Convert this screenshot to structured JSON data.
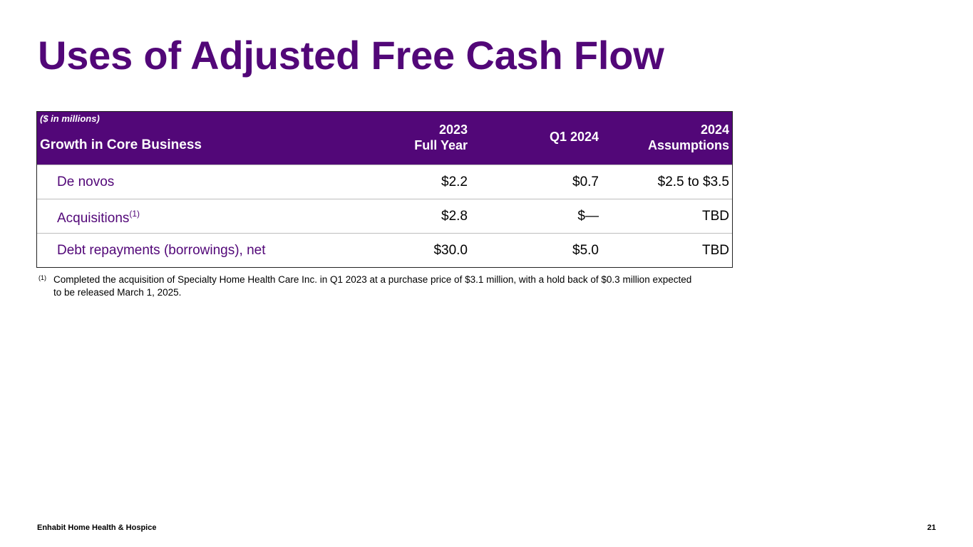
{
  "title": "Uses of Adjusted Free Cash Flow",
  "table": {
    "units": "($ in millions)",
    "section_label": "Growth in Core Business",
    "columns": [
      {
        "line1": "2023",
        "line2": "Full Year"
      },
      {
        "line1": "Q1 2024",
        "line2": ""
      },
      {
        "line1": "2024",
        "line2": "Assumptions"
      }
    ],
    "rows": [
      {
        "label": "De novos",
        "footnote_ref": "",
        "values": [
          "$2.2",
          "$0.7",
          "$2.5 to $3.5"
        ]
      },
      {
        "label": "Acquisitions",
        "footnote_ref": "(1)",
        "values": [
          "$2.8",
          "$—",
          "TBD"
        ]
      },
      {
        "label": "Debt repayments (borrowings), net",
        "footnote_ref": "",
        "values": [
          "$30.0",
          "$5.0",
          "TBD"
        ]
      }
    ]
  },
  "footnote": {
    "mark": "(1)",
    "text": "Completed the acquisition of Specialty Home Health Care Inc. in Q1 2023 at a purchase price of $3.1 million, with a hold back of $0.3 million expected to be released March 1, 2025."
  },
  "footer": {
    "brand": "Enhabit Home Health & Hospice",
    "page_number": "21"
  },
  "colors": {
    "brand_purple": "#520778"
  }
}
